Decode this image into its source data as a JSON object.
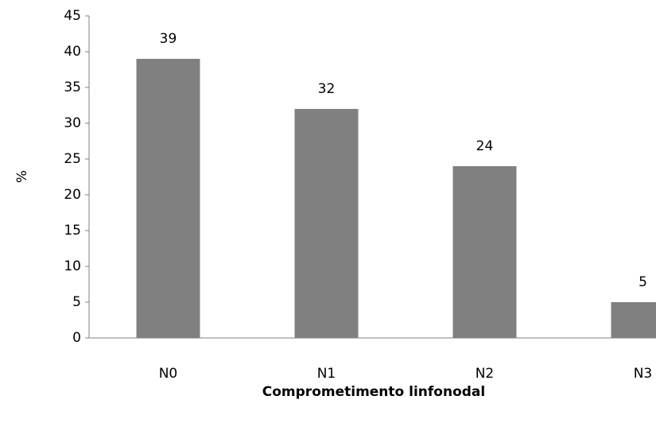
{
  "chart_data": {
    "type": "bar",
    "x_label": "Comprometimento linfonodal",
    "y_label": "%",
    "categories": [
      "N0",
      "N1",
      "N2",
      "N3"
    ],
    "values": [
      39,
      32,
      24,
      5
    ],
    "color": "#808080",
    "ylim": [
      0,
      45
    ],
    "yticks": [
      0,
      5,
      10,
      15,
      20,
      25,
      30,
      35,
      40,
      45
    ]
  }
}
